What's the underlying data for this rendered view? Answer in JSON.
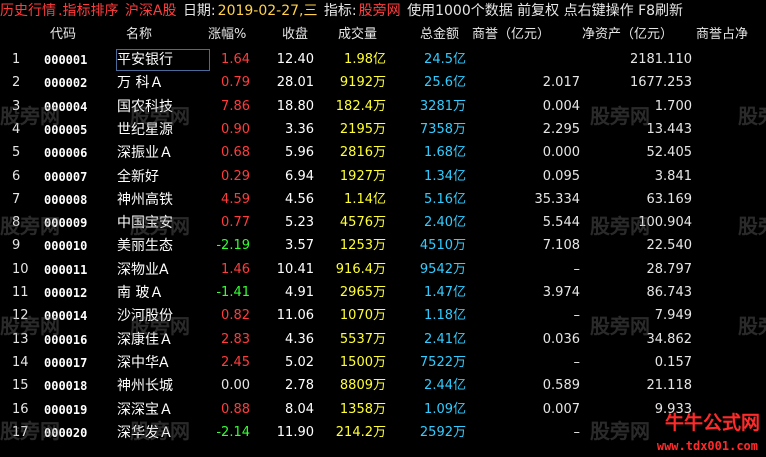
{
  "topbar": {
    "history": "历史行情",
    "sort": ".指标排序",
    "market": "沪深A股",
    "date_label": "日期:",
    "date_value": "2019-02-27,三",
    "indicator_label": "指标:",
    "indicator_value": "股旁网",
    "note": "使用1000个数据 前复权 点右键操作 F8刷新"
  },
  "header": {
    "code": "代码",
    "name": "名称",
    "change": "涨幅%",
    "close": "收盘",
    "volume": "成交量",
    "amount": "总金额",
    "goodwill": "商誉（亿元）",
    "net_assets": "净资产（亿元）",
    "goodwill_ratio": "商誉占净"
  },
  "colors": {
    "up": "#ff3c3c",
    "down": "#33ff33",
    "volume": "#ffff33",
    "amount": "#33ccff"
  },
  "rows": [
    {
      "idx": "1",
      "code": "000001",
      "name": "平安银行",
      "chg": "1.64",
      "dir": "up",
      "close": "12.40",
      "vol": "1.98亿",
      "amt": "24.5亿",
      "gw": "",
      "na": "2181.110"
    },
    {
      "idx": "2",
      "code": "000002",
      "name": "万 科Ａ",
      "chg": "0.79",
      "dir": "up",
      "close": "28.01",
      "vol": "9192万",
      "amt": "25.6亿",
      "gw": "2.017",
      "na": "1677.253"
    },
    {
      "idx": "3",
      "code": "000004",
      "name": "国农科技",
      "chg": "7.86",
      "dir": "up",
      "close": "18.80",
      "vol": "182.4万",
      "amt": "3281万",
      "gw": "0.004",
      "na": "1.700"
    },
    {
      "idx": "4",
      "code": "000005",
      "name": "世纪星源",
      "chg": "0.90",
      "dir": "up",
      "close": "3.36",
      "vol": "2195万",
      "amt": "7358万",
      "gw": "2.295",
      "na": "13.443"
    },
    {
      "idx": "5",
      "code": "000006",
      "name": "深振业Ａ",
      "chg": "0.68",
      "dir": "up",
      "close": "5.96",
      "vol": "2816万",
      "amt": "1.68亿",
      "gw": "0.000",
      "na": "52.405"
    },
    {
      "idx": "6",
      "code": "000007",
      "name": "全新好",
      "chg": "0.29",
      "dir": "up",
      "close": "6.94",
      "vol": "1927万",
      "amt": "1.34亿",
      "gw": "0.095",
      "na": "3.841"
    },
    {
      "idx": "7",
      "code": "000008",
      "name": "神州高铁",
      "chg": "4.59",
      "dir": "up",
      "close": "4.56",
      "vol": "1.14亿",
      "amt": "5.16亿",
      "gw": "35.334",
      "na": "63.169"
    },
    {
      "idx": "8",
      "code": "000009",
      "name": "中国宝安",
      "chg": "0.77",
      "dir": "up",
      "close": "5.23",
      "vol": "4576万",
      "amt": "2.40亿",
      "gw": "5.544",
      "na": "100.904"
    },
    {
      "idx": "9",
      "code": "000010",
      "name": "美丽生态",
      "chg": "-2.19",
      "dir": "down",
      "close": "3.57",
      "vol": "1253万",
      "amt": "4510万",
      "gw": "7.108",
      "na": "22.540"
    },
    {
      "idx": "10",
      "code": "000011",
      "name": "深物业A",
      "chg": "1.46",
      "dir": "up",
      "close": "10.41",
      "vol": "916.4万",
      "amt": "9542万",
      "gw": "–",
      "na": "28.797"
    },
    {
      "idx": "11",
      "code": "000012",
      "name": "南 玻Ａ",
      "chg": "-1.41",
      "dir": "down",
      "close": "4.91",
      "vol": "2965万",
      "amt": "1.47亿",
      "gw": "3.974",
      "na": "86.743"
    },
    {
      "idx": "12",
      "code": "000014",
      "name": "沙河股份",
      "chg": "0.82",
      "dir": "up",
      "close": "11.06",
      "vol": "1070万",
      "amt": "1.18亿",
      "gw": "–",
      "na": "7.949"
    },
    {
      "idx": "13",
      "code": "000016",
      "name": "深康佳Ａ",
      "chg": "2.83",
      "dir": "up",
      "close": "4.36",
      "vol": "5537万",
      "amt": "2.41亿",
      "gw": "0.036",
      "na": "34.862"
    },
    {
      "idx": "14",
      "code": "000017",
      "name": "深中华A",
      "chg": "2.45",
      "dir": "up",
      "close": "5.02",
      "vol": "1500万",
      "amt": "7522万",
      "gw": "–",
      "na": "0.157"
    },
    {
      "idx": "15",
      "code": "000018",
      "name": "神州长城",
      "chg": "0.00",
      "dir": "flat",
      "close": "2.78",
      "vol": "8809万",
      "amt": "2.44亿",
      "gw": "0.589",
      "na": "21.118"
    },
    {
      "idx": "16",
      "code": "000019",
      "name": "深深宝Ａ",
      "chg": "0.88",
      "dir": "up",
      "close": "8.04",
      "vol": "1358万",
      "amt": "1.09亿",
      "gw": "0.007",
      "na": "9.933"
    },
    {
      "idx": "17",
      "code": "000020",
      "name": "深华发Ａ",
      "chg": "-2.14",
      "dir": "down",
      "close": "11.90",
      "vol": "214.2万",
      "amt": "2592万",
      "gw": "–",
      "na": ""
    }
  ],
  "watermark": "股旁网",
  "logo": "牛牛公式网",
  "logo_url": "www.tdx001.com"
}
